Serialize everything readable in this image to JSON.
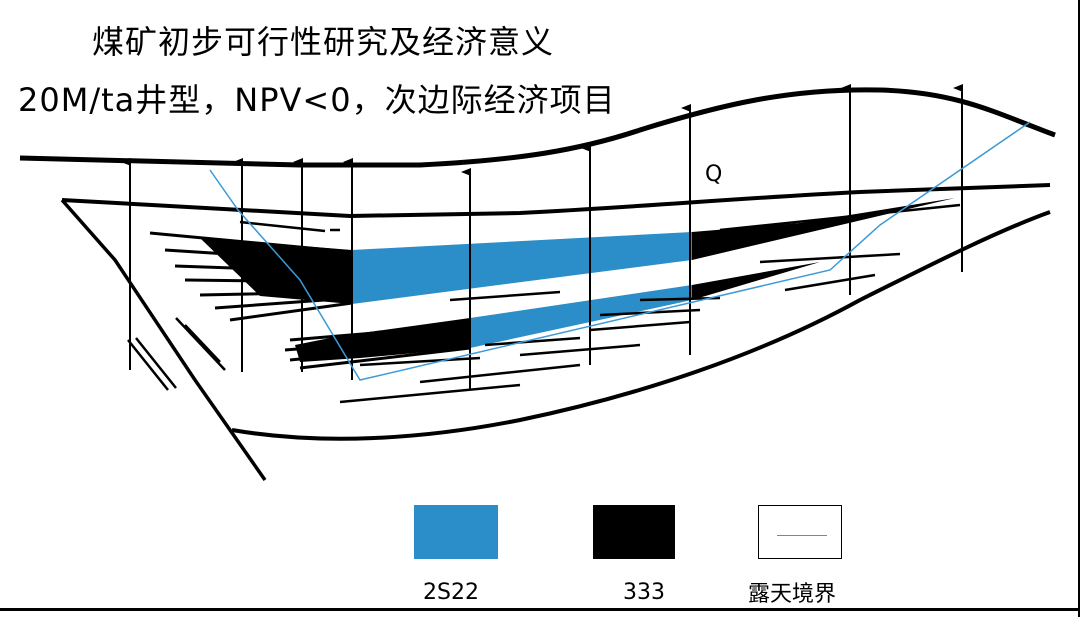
{
  "title": {
    "line1": "煤矿初步可行性研究及经济意义",
    "line2": "20M/ta井型，NPV<0，次边际经济项目"
  },
  "section": {
    "quaternary_label": "Q"
  },
  "legend": {
    "items": [
      {
        "label": "2S22",
        "type": "fill",
        "color": "#2c8ec8"
      },
      {
        "label": "333",
        "type": "fill",
        "color": "#000000"
      },
      {
        "label": "露天境界",
        "type": "line",
        "color": "#3b9ad8"
      }
    ]
  }
}
